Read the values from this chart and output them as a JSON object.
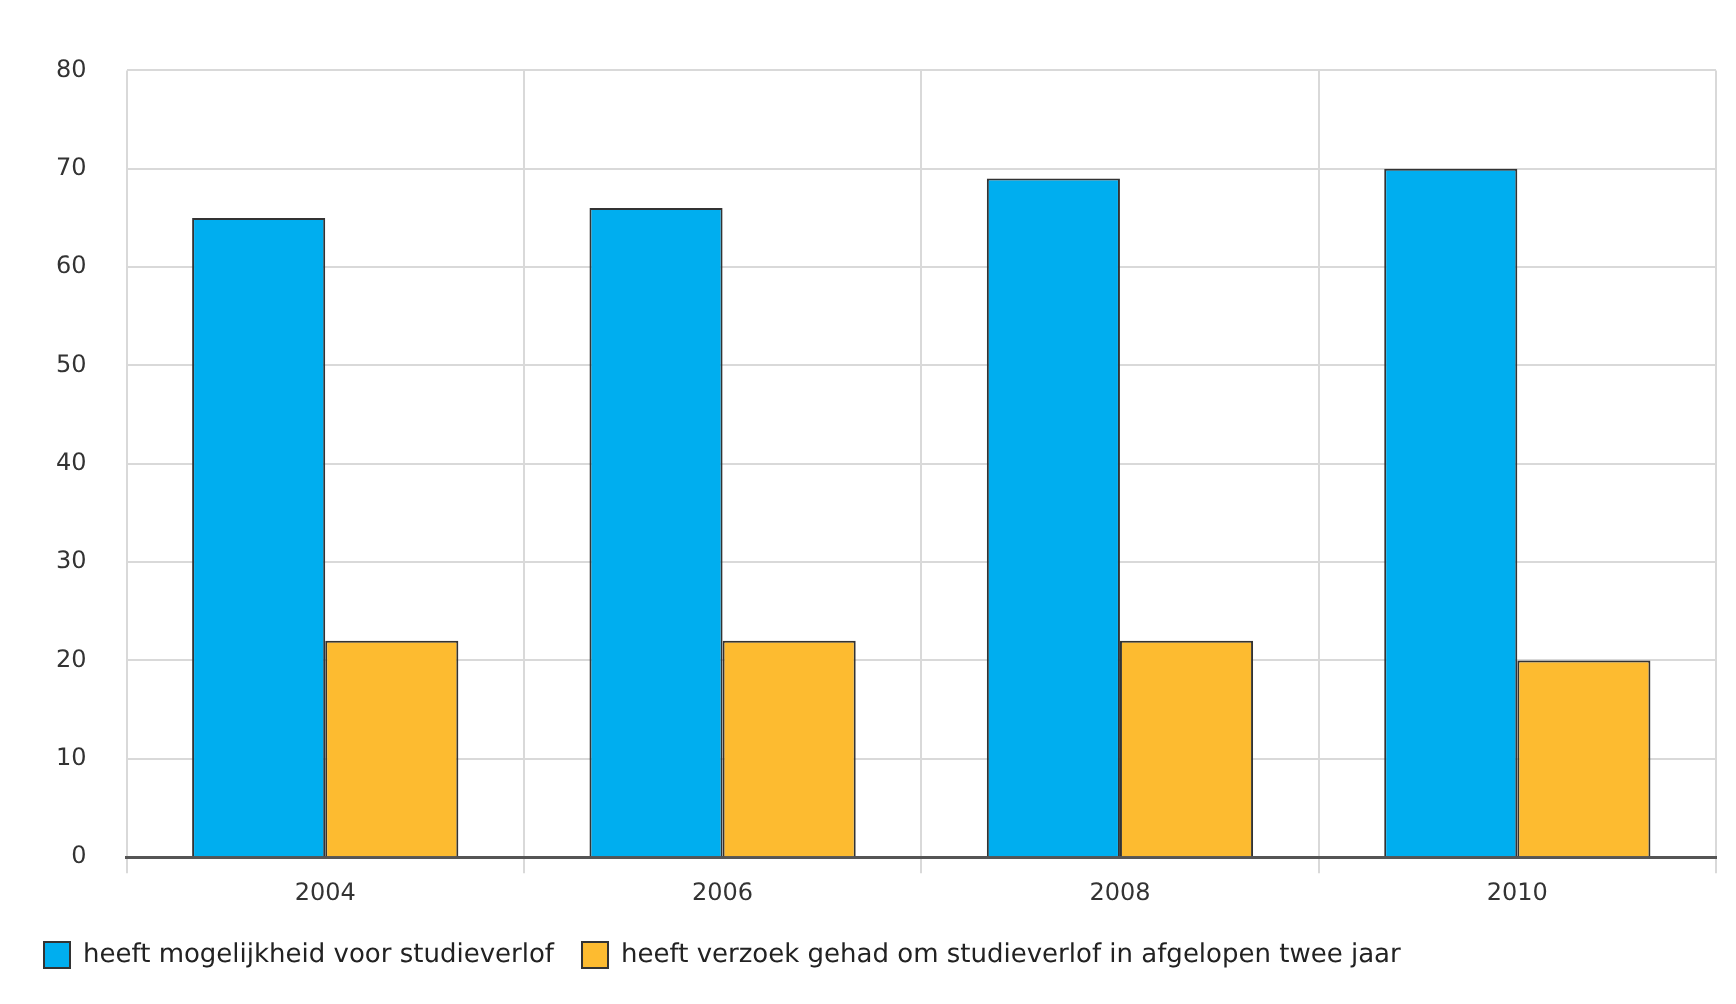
{
  "chart_data": {
    "type": "bar",
    "categories": [
      "2004",
      "2006",
      "2008",
      "2010"
    ],
    "series": [
      {
        "name": "heeft mogelijkheid voor studieverlof",
        "color": "#00aeef",
        "values": [
          65,
          66,
          69,
          70
        ]
      },
      {
        "name": "heeft verzoek gehad om studieverlof in afgelopen twee jaar",
        "color": "#fdbb30",
        "values": [
          22,
          22,
          22,
          20
        ]
      }
    ],
    "ylim": [
      0,
      80
    ],
    "yticks": [
      0,
      10,
      20,
      30,
      40,
      50,
      60,
      70,
      80
    ],
    "grid": true,
    "legend": "bottom"
  }
}
